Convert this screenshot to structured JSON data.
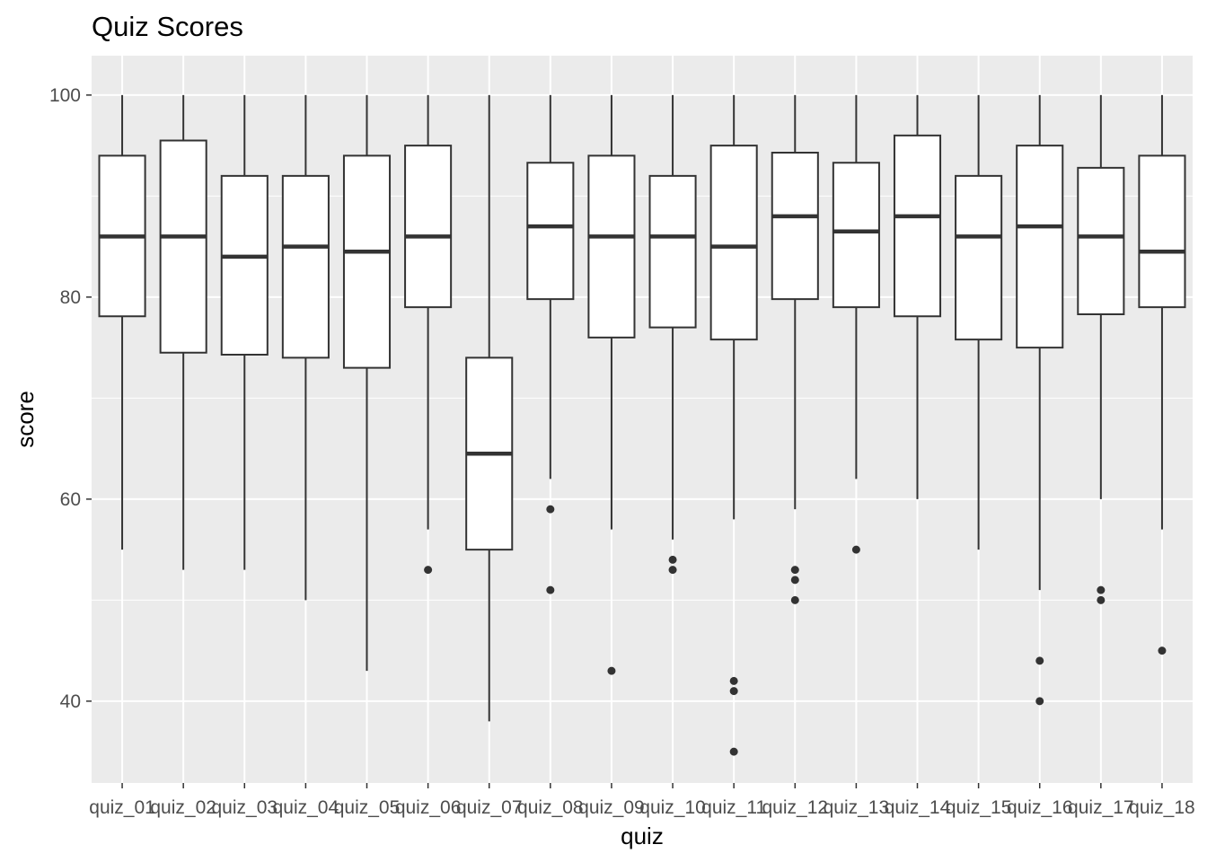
{
  "chart_data": {
    "type": "boxplot",
    "title": "Quiz Scores",
    "xlabel": "quiz",
    "ylabel": "score",
    "ylim": [
      31.9,
      103.9
    ],
    "yticks": [
      40,
      60,
      80,
      100
    ],
    "grid": true,
    "colors": {
      "panel": "#EBEBEB",
      "grid": "#FFFFFF",
      "box_fill": "#FFFFFF",
      "line": "#333333",
      "tick_text": "#4D4D4D"
    },
    "categories": [
      "quiz_01",
      "quiz_02",
      "quiz_03",
      "quiz_04",
      "quiz_05",
      "quiz_06",
      "quiz_07",
      "quiz_08",
      "quiz_09",
      "quiz_10",
      "quiz_11",
      "quiz_12",
      "quiz_13",
      "quiz_14",
      "quiz_15",
      "quiz_16",
      "quiz_17",
      "quiz_18"
    ],
    "boxes": [
      {
        "min": 55,
        "q1": 78.1,
        "median": 86,
        "q3": 94,
        "max": 100,
        "outliers": []
      },
      {
        "min": 53,
        "q1": 74.5,
        "median": 86,
        "q3": 95.5,
        "max": 100,
        "outliers": []
      },
      {
        "min": 53,
        "q1": 74.3,
        "median": 84,
        "q3": 92,
        "max": 100,
        "outliers": []
      },
      {
        "min": 50,
        "q1": 74,
        "median": 85,
        "q3": 92,
        "max": 100,
        "outliers": []
      },
      {
        "min": 43,
        "q1": 73,
        "median": 84.5,
        "q3": 94,
        "max": 100,
        "outliers": []
      },
      {
        "min": 57,
        "q1": 79,
        "median": 86,
        "q3": 95,
        "max": 100,
        "outliers": [
          53
        ]
      },
      {
        "min": 38,
        "q1": 55,
        "median": 64.5,
        "q3": 74,
        "max": 100,
        "outliers": []
      },
      {
        "min": 62,
        "q1": 79.8,
        "median": 87,
        "q3": 93.3,
        "max": 100,
        "outliers": [
          59,
          51
        ]
      },
      {
        "min": 57,
        "q1": 76,
        "median": 86,
        "q3": 94,
        "max": 100,
        "outliers": [
          43
        ]
      },
      {
        "min": 56,
        "q1": 77,
        "median": 86,
        "q3": 92,
        "max": 100,
        "outliers": [
          54,
          53
        ]
      },
      {
        "min": 58,
        "q1": 75.8,
        "median": 85,
        "q3": 95,
        "max": 100,
        "outliers": [
          42,
          41,
          35
        ]
      },
      {
        "min": 59,
        "q1": 79.8,
        "median": 88,
        "q3": 94.3,
        "max": 100,
        "outliers": [
          53,
          52,
          50
        ]
      },
      {
        "min": 62,
        "q1": 79,
        "median": 86.5,
        "q3": 93.3,
        "max": 100,
        "outliers": [
          55
        ]
      },
      {
        "min": 60,
        "q1": 78.1,
        "median": 88,
        "q3": 96,
        "max": 100,
        "outliers": []
      },
      {
        "min": 55,
        "q1": 75.8,
        "median": 86,
        "q3": 92,
        "max": 100,
        "outliers": []
      },
      {
        "min": 51,
        "q1": 75,
        "median": 87,
        "q3": 95,
        "max": 100,
        "outliers": [
          44,
          40
        ]
      },
      {
        "min": 60,
        "q1": 78.3,
        "median": 86,
        "q3": 92.8,
        "max": 100,
        "outliers": [
          51,
          50
        ]
      },
      {
        "min": 57,
        "q1": 79,
        "median": 84.5,
        "q3": 94,
        "max": 100,
        "outliers": [
          45
        ]
      }
    ]
  }
}
